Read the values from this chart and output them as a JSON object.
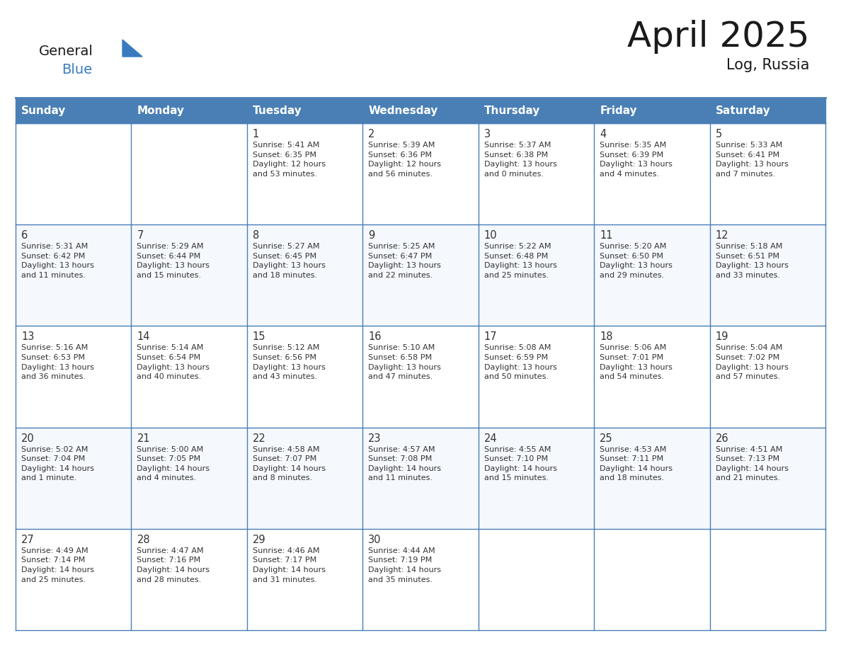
{
  "title": "April 2025",
  "subtitle": "Log, Russia",
  "header_bg": "#4a7fb5",
  "header_text_color": "#ffffff",
  "border_color": "#4a7fb5",
  "text_color": "#333333",
  "day_number_color": "#333333",
  "cell_bg_even": "#ffffff",
  "cell_bg_odd": "#f5f8fc",
  "logo_general_color": "#1a1a1a",
  "logo_blue_color": "#3a7bbf",
  "day_headers": [
    "Sunday",
    "Monday",
    "Tuesday",
    "Wednesday",
    "Thursday",
    "Friday",
    "Saturday"
  ],
  "days": [
    {
      "day": null,
      "text": ""
    },
    {
      "day": null,
      "text": ""
    },
    {
      "day": "1",
      "text": "Sunrise: 5:41 AM\nSunset: 6:35 PM\nDaylight: 12 hours\nand 53 minutes."
    },
    {
      "day": "2",
      "text": "Sunrise: 5:39 AM\nSunset: 6:36 PM\nDaylight: 12 hours\nand 56 minutes."
    },
    {
      "day": "3",
      "text": "Sunrise: 5:37 AM\nSunset: 6:38 PM\nDaylight: 13 hours\nand 0 minutes."
    },
    {
      "day": "4",
      "text": "Sunrise: 5:35 AM\nSunset: 6:39 PM\nDaylight: 13 hours\nand 4 minutes."
    },
    {
      "day": "5",
      "text": "Sunrise: 5:33 AM\nSunset: 6:41 PM\nDaylight: 13 hours\nand 7 minutes."
    },
    {
      "day": "6",
      "text": "Sunrise: 5:31 AM\nSunset: 6:42 PM\nDaylight: 13 hours\nand 11 minutes."
    },
    {
      "day": "7",
      "text": "Sunrise: 5:29 AM\nSunset: 6:44 PM\nDaylight: 13 hours\nand 15 minutes."
    },
    {
      "day": "8",
      "text": "Sunrise: 5:27 AM\nSunset: 6:45 PM\nDaylight: 13 hours\nand 18 minutes."
    },
    {
      "day": "9",
      "text": "Sunrise: 5:25 AM\nSunset: 6:47 PM\nDaylight: 13 hours\nand 22 minutes."
    },
    {
      "day": "10",
      "text": "Sunrise: 5:22 AM\nSunset: 6:48 PM\nDaylight: 13 hours\nand 25 minutes."
    },
    {
      "day": "11",
      "text": "Sunrise: 5:20 AM\nSunset: 6:50 PM\nDaylight: 13 hours\nand 29 minutes."
    },
    {
      "day": "12",
      "text": "Sunrise: 5:18 AM\nSunset: 6:51 PM\nDaylight: 13 hours\nand 33 minutes."
    },
    {
      "day": "13",
      "text": "Sunrise: 5:16 AM\nSunset: 6:53 PM\nDaylight: 13 hours\nand 36 minutes."
    },
    {
      "day": "14",
      "text": "Sunrise: 5:14 AM\nSunset: 6:54 PM\nDaylight: 13 hours\nand 40 minutes."
    },
    {
      "day": "15",
      "text": "Sunrise: 5:12 AM\nSunset: 6:56 PM\nDaylight: 13 hours\nand 43 minutes."
    },
    {
      "day": "16",
      "text": "Sunrise: 5:10 AM\nSunset: 6:58 PM\nDaylight: 13 hours\nand 47 minutes."
    },
    {
      "day": "17",
      "text": "Sunrise: 5:08 AM\nSunset: 6:59 PM\nDaylight: 13 hours\nand 50 minutes."
    },
    {
      "day": "18",
      "text": "Sunrise: 5:06 AM\nSunset: 7:01 PM\nDaylight: 13 hours\nand 54 minutes."
    },
    {
      "day": "19",
      "text": "Sunrise: 5:04 AM\nSunset: 7:02 PM\nDaylight: 13 hours\nand 57 minutes."
    },
    {
      "day": "20",
      "text": "Sunrise: 5:02 AM\nSunset: 7:04 PM\nDaylight: 14 hours\nand 1 minute."
    },
    {
      "day": "21",
      "text": "Sunrise: 5:00 AM\nSunset: 7:05 PM\nDaylight: 14 hours\nand 4 minutes."
    },
    {
      "day": "22",
      "text": "Sunrise: 4:58 AM\nSunset: 7:07 PM\nDaylight: 14 hours\nand 8 minutes."
    },
    {
      "day": "23",
      "text": "Sunrise: 4:57 AM\nSunset: 7:08 PM\nDaylight: 14 hours\nand 11 minutes."
    },
    {
      "day": "24",
      "text": "Sunrise: 4:55 AM\nSunset: 7:10 PM\nDaylight: 14 hours\nand 15 minutes."
    },
    {
      "day": "25",
      "text": "Sunrise: 4:53 AM\nSunset: 7:11 PM\nDaylight: 14 hours\nand 18 minutes."
    },
    {
      "day": "26",
      "text": "Sunrise: 4:51 AM\nSunset: 7:13 PM\nDaylight: 14 hours\nand 21 minutes."
    },
    {
      "day": "27",
      "text": "Sunrise: 4:49 AM\nSunset: 7:14 PM\nDaylight: 14 hours\nand 25 minutes."
    },
    {
      "day": "28",
      "text": "Sunrise: 4:47 AM\nSunset: 7:16 PM\nDaylight: 14 hours\nand 28 minutes."
    },
    {
      "day": "29",
      "text": "Sunrise: 4:46 AM\nSunset: 7:17 PM\nDaylight: 14 hours\nand 31 minutes."
    },
    {
      "day": "30",
      "text": "Sunrise: 4:44 AM\nSunset: 7:19 PM\nDaylight: 14 hours\nand 35 minutes."
    },
    {
      "day": null,
      "text": ""
    },
    {
      "day": null,
      "text": ""
    },
    {
      "day": null,
      "text": ""
    }
  ],
  "num_rows": 5,
  "num_cols": 7
}
